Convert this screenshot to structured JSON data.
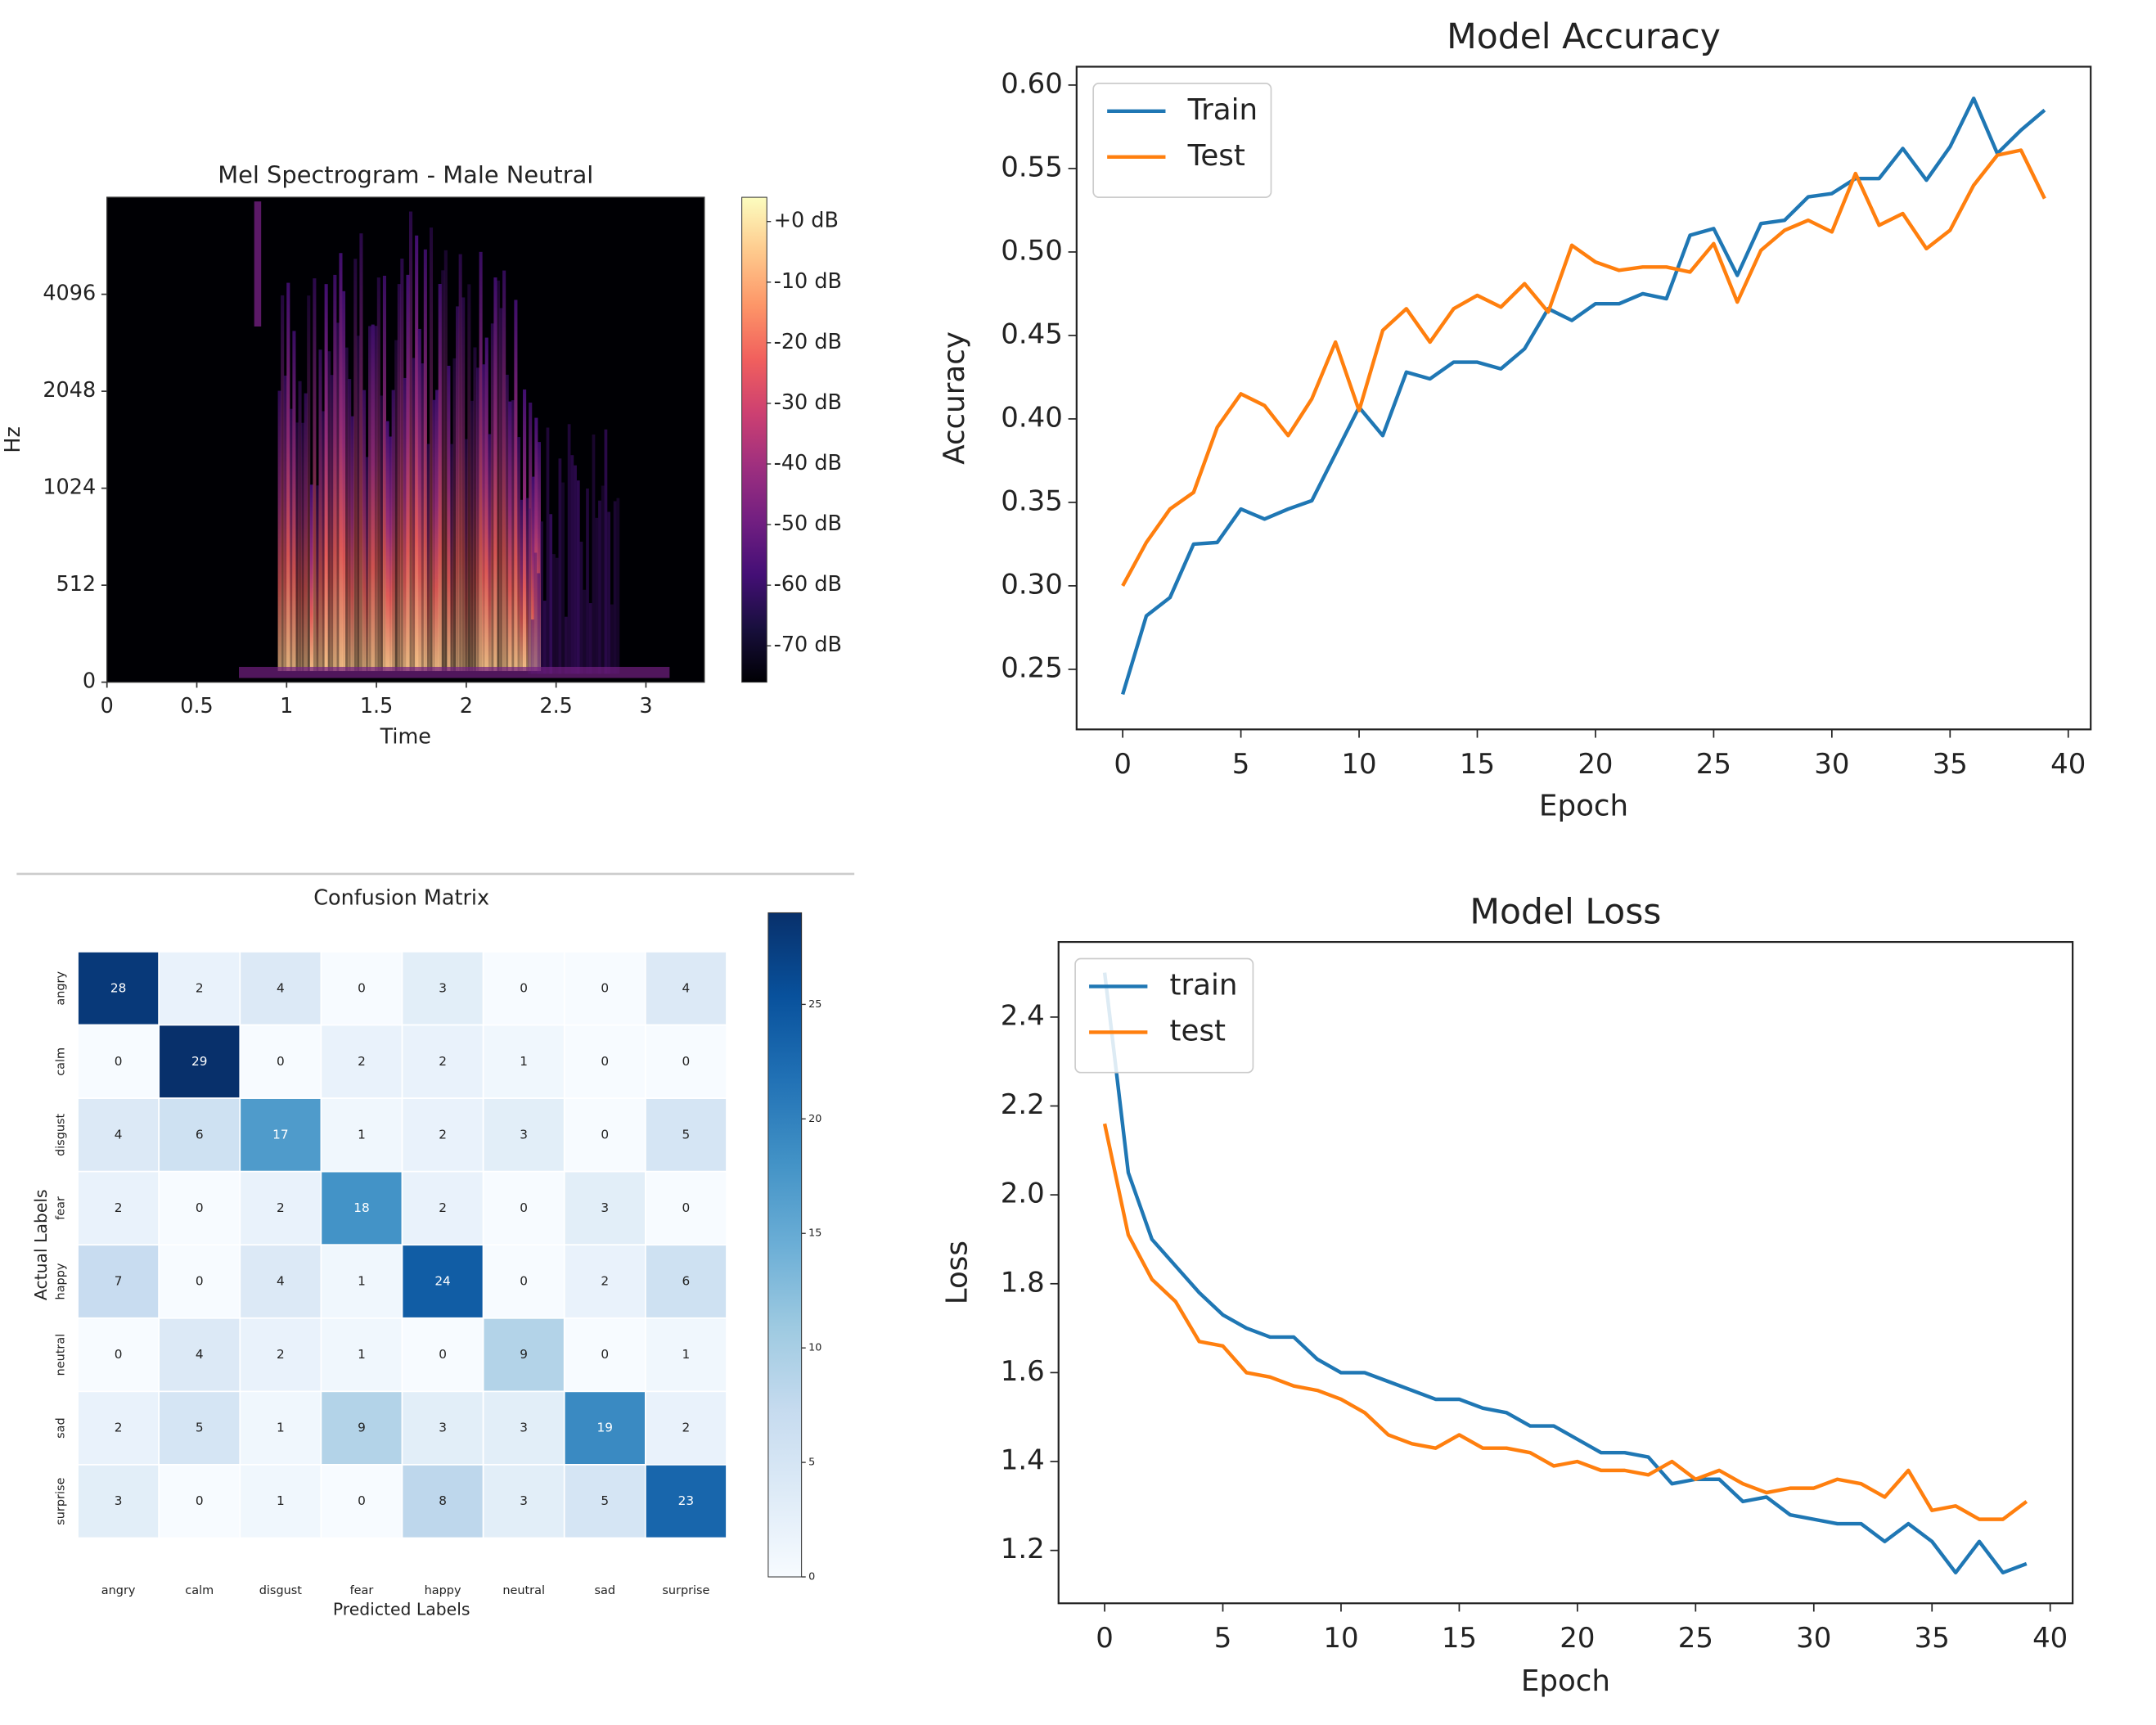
{
  "chart_data": [
    {
      "type": "spectrogram",
      "title": "Mel Spectrogram - Male Neutral",
      "xlabel": "Time",
      "ylabel": "Hz",
      "xlim": [
        0,
        3.325
      ],
      "xticks": [
        0,
        0.5,
        1,
        1.5,
        2,
        2.5,
        3
      ],
      "ylim": [
        0,
        8192
      ],
      "yticks": [
        0,
        512,
        1024,
        2048,
        4096
      ],
      "yscale": "symlog",
      "linthresh": 512,
      "colormap": "magma",
      "clim": [
        -76,
        4
      ],
      "colorbar_ticks": [
        {
          "value": 0,
          "label": "+0 dB"
        },
        {
          "value": -10,
          "label": "-10 dB"
        },
        {
          "value": -20,
          "label": "-20 dB"
        },
        {
          "value": -30,
          "label": "-30 dB"
        },
        {
          "value": -40,
          "label": "-40 dB"
        },
        {
          "value": -50,
          "label": "-50 dB"
        },
        {
          "value": -60,
          "label": "-60 dB"
        },
        {
          "value": -70,
          "label": "-70 dB"
        }
      ]
    },
    {
      "type": "heatmap",
      "title": "Confusion Matrix",
      "xlabel": "Predicted Labels",
      "ylabel": "Actual Labels",
      "x_categories": [
        "angry",
        "calm",
        "disgust",
        "fear",
        "happy",
        "neutral",
        "sad",
        "surprise"
      ],
      "y_categories": [
        "angry",
        "calm",
        "disgust",
        "fear",
        "happy",
        "neutral",
        "sad",
        "surprise"
      ],
      "values": [
        [
          28,
          2,
          4,
          0,
          3,
          0,
          0,
          4
        ],
        [
          0,
          29,
          0,
          2,
          2,
          1,
          0,
          0
        ],
        [
          4,
          6,
          17,
          1,
          2,
          3,
          0,
          5
        ],
        [
          2,
          0,
          2,
          18,
          2,
          0,
          3,
          0
        ],
        [
          7,
          0,
          4,
          1,
          24,
          0,
          2,
          6
        ],
        [
          0,
          4,
          2,
          1,
          0,
          9,
          0,
          1
        ],
        [
          2,
          5,
          1,
          9,
          3,
          3,
          19,
          2
        ],
        [
          3,
          0,
          1,
          0,
          8,
          3,
          5,
          23
        ]
      ],
      "colormap": "Blues",
      "clim": [
        0,
        29
      ],
      "colorbar_ticks": [
        0,
        5,
        10,
        15,
        20,
        25
      ]
    },
    {
      "type": "line",
      "title": "Model Accuracy",
      "xlabel": "Epoch",
      "ylabel": "Accuracy",
      "x": [
        0,
        1,
        2,
        3,
        4,
        5,
        6,
        7,
        8,
        9,
        10,
        11,
        12,
        13,
        14,
        15,
        16,
        17,
        18,
        19,
        20,
        21,
        22,
        23,
        24,
        25,
        26,
        27,
        28,
        29,
        30,
        31,
        32,
        33,
        34,
        35,
        36,
        37,
        38,
        39
      ],
      "series": [
        {
          "name": "Train",
          "color": "#1f77b4",
          "values": [
            0.235,
            0.282,
            0.293,
            0.325,
            0.326,
            0.346,
            0.34,
            0.346,
            0.351,
            0.379,
            0.407,
            0.39,
            0.428,
            0.424,
            0.434,
            0.434,
            0.43,
            0.442,
            0.466,
            0.459,
            0.469,
            0.469,
            0.475,
            0.472,
            0.51,
            0.514,
            0.486,
            0.517,
            0.519,
            0.533,
            0.535,
            0.544,
            0.544,
            0.562,
            0.543,
            0.563,
            0.592,
            0.559,
            0.573,
            0.585
          ]
        },
        {
          "name": "Test",
          "color": "#ff7f0e",
          "values": [
            0.3,
            0.326,
            0.346,
            0.356,
            0.395,
            0.415,
            0.408,
            0.39,
            0.412,
            0.446,
            0.405,
            0.453,
            0.466,
            0.446,
            0.466,
            0.474,
            0.467,
            0.481,
            0.464,
            0.504,
            0.494,
            0.489,
            0.491,
            0.491,
            0.488,
            0.505,
            0.47,
            0.501,
            0.513,
            0.519,
            0.512,
            0.547,
            0.516,
            0.523,
            0.502,
            0.513,
            0.54,
            0.558,
            0.561,
            0.532
          ]
        }
      ],
      "xlim": [
        -1.95,
        40.95
      ],
      "xticks": [
        0,
        5,
        10,
        15,
        20,
        25,
        30,
        35,
        40
      ],
      "ylim": [
        0.214,
        0.611
      ],
      "yticks": [
        {
          "value": 0.25,
          "label": "0.25"
        },
        {
          "value": 0.3,
          "label": "0.30"
        },
        {
          "value": 0.35,
          "label": "0.35"
        },
        {
          "value": 0.4,
          "label": "0.40"
        },
        {
          "value": 0.45,
          "label": "0.45"
        },
        {
          "value": 0.5,
          "label": "0.50"
        },
        {
          "value": 0.55,
          "label": "0.55"
        },
        {
          "value": 0.6,
          "label": "0.60"
        }
      ],
      "legend": "upper left"
    },
    {
      "type": "line",
      "title": "Model Loss",
      "xlabel": "Epoch",
      "ylabel": "Loss",
      "x": [
        0,
        1,
        2,
        3,
        4,
        5,
        6,
        7,
        8,
        9,
        10,
        11,
        12,
        13,
        14,
        15,
        16,
        17,
        18,
        19,
        20,
        21,
        22,
        23,
        24,
        25,
        26,
        27,
        28,
        29,
        30,
        31,
        32,
        33,
        34,
        35,
        36,
        37,
        38,
        39
      ],
      "series": [
        {
          "name": "train",
          "color": "#1f77b4",
          "values": [
            2.5,
            2.05,
            1.9,
            1.84,
            1.78,
            1.73,
            1.7,
            1.68,
            1.68,
            1.63,
            1.6,
            1.6,
            1.58,
            1.56,
            1.54,
            1.54,
            1.52,
            1.51,
            1.48,
            1.48,
            1.45,
            1.42,
            1.42,
            1.41,
            1.35,
            1.36,
            1.36,
            1.31,
            1.32,
            1.28,
            1.27,
            1.26,
            1.26,
            1.22,
            1.26,
            1.22,
            1.15,
            1.22,
            1.15,
            1.17
          ]
        },
        {
          "name": "test",
          "color": "#ff7f0e",
          "values": [
            2.16,
            1.91,
            1.81,
            1.76,
            1.67,
            1.66,
            1.6,
            1.59,
            1.57,
            1.56,
            1.54,
            1.51,
            1.46,
            1.44,
            1.43,
            1.46,
            1.43,
            1.43,
            1.42,
            1.39,
            1.4,
            1.38,
            1.38,
            1.37,
            1.4,
            1.36,
            1.38,
            1.35,
            1.33,
            1.34,
            1.34,
            1.36,
            1.35,
            1.32,
            1.38,
            1.29,
            1.3,
            1.27,
            1.27,
            1.31
          ]
        }
      ],
      "xlim": [
        -1.95,
        40.95
      ],
      "xticks": [
        0,
        5,
        10,
        15,
        20,
        25,
        30,
        35,
        40
      ],
      "ylim": [
        1.081,
        2.569
      ],
      "yticks": [
        1.2,
        1.4,
        1.6,
        1.8,
        {
          "value": 2,
          "label": "2.0"
        },
        2.2,
        2.4
      ],
      "legend": "upper left"
    }
  ]
}
